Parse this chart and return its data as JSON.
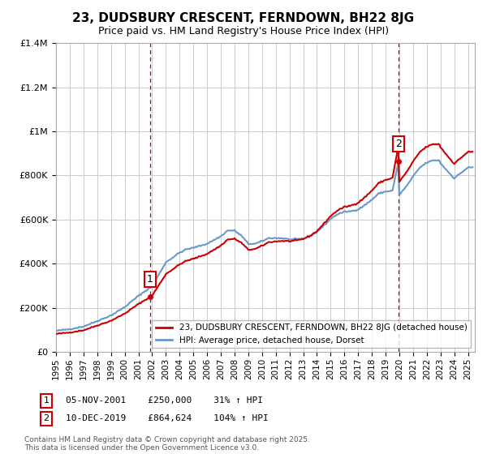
{
  "title": "23, DUDSBURY CRESCENT, FERNDOWN, BH22 8JG",
  "subtitle": "Price paid vs. HM Land Registry's House Price Index (HPI)",
  "ylim": [
    0,
    1400000
  ],
  "xlim_start": 1995.0,
  "xlim_end": 2025.5,
  "sale1_date": 2001.846,
  "sale1_price": 250000,
  "sale2_date": 2019.95,
  "sale2_price": 864624,
  "property_line_color": "#cc0000",
  "hpi_line_color": "#6699cc",
  "sale_marker_color": "#cc0000",
  "vline_color": "#cc0000",
  "grid_color": "#cccccc",
  "background_color": "#ffffff",
  "legend_label_property": "23, DUDSBURY CRESCENT, FERNDOWN, BH22 8JG (detached house)",
  "legend_label_hpi": "HPI: Average price, detached house, Dorset",
  "sale1_annotation": "05-NOV-2001    £250,000    31% ↑ HPI",
  "sale2_annotation": "10-DEC-2019    £864,624    104% ↑ HPI",
  "footer": "Contains HM Land Registry data © Crown copyright and database right 2025.\nThis data is licensed under the Open Government Licence v3.0."
}
